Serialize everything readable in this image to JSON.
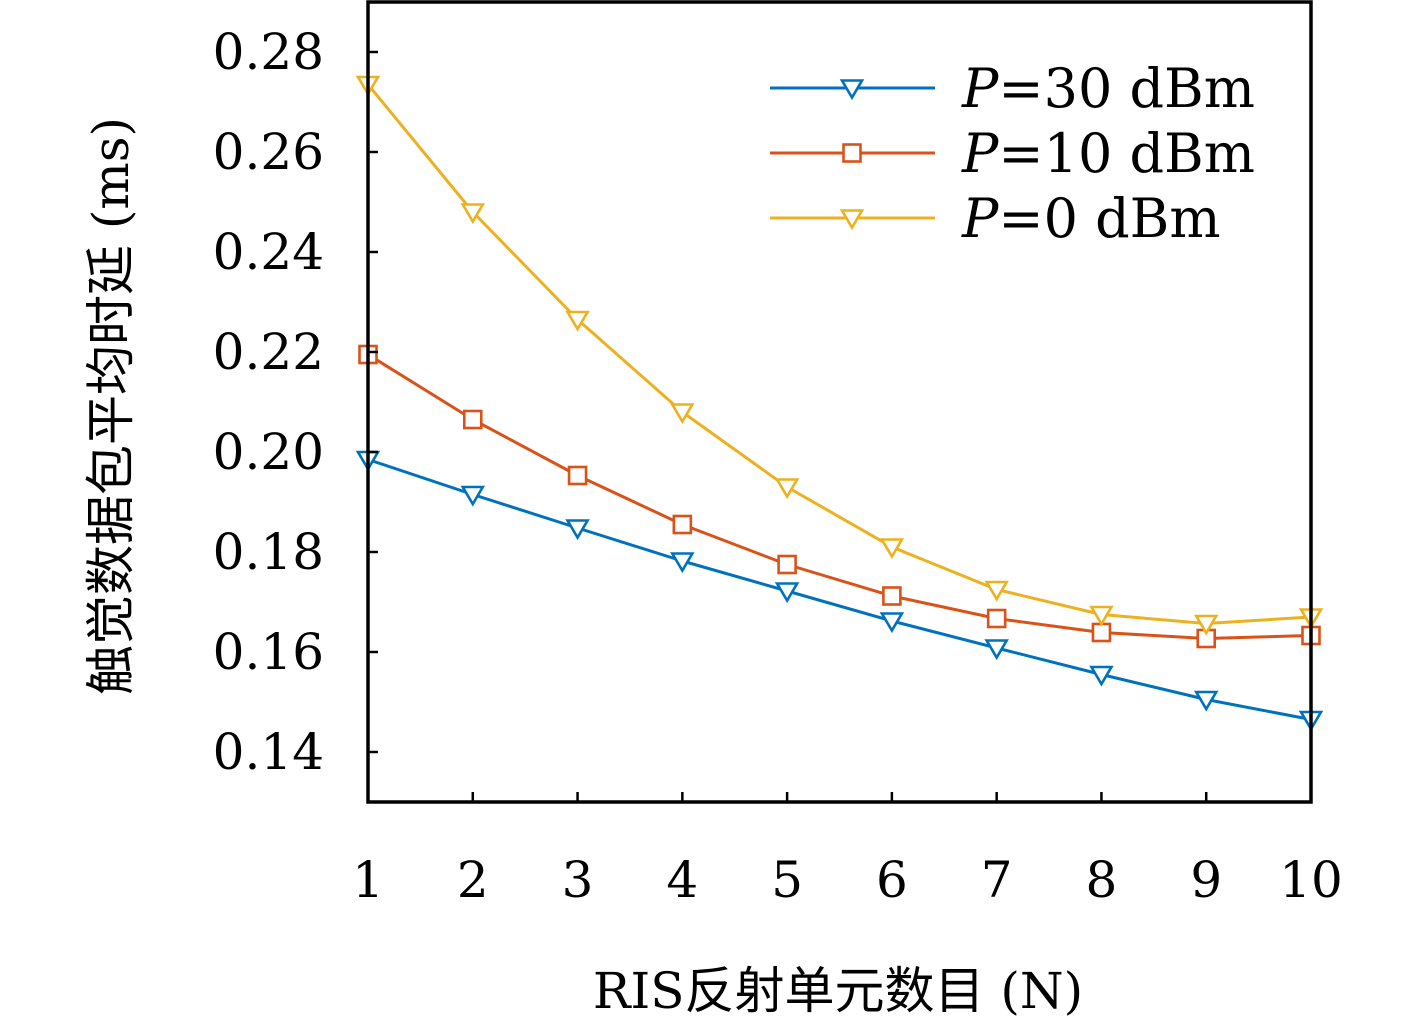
{
  "chart_data": {
    "type": "line",
    "xlabel": "RIS反射单元数目 (N)",
    "ylabel": "触觉数据包平均时延 (ms)",
    "x": [
      1,
      2,
      3,
      4,
      5,
      6,
      7,
      8,
      9,
      10
    ],
    "xlim": [
      1,
      10
    ],
    "ylim": [
      0.13,
      0.29
    ],
    "xticks": [
      "1",
      "2",
      "3",
      "4",
      "5",
      "6",
      "7",
      "8",
      "9",
      "10"
    ],
    "yticks": [
      "0.14",
      "0.16",
      "0.18",
      "0.20",
      "0.22",
      "0.24",
      "0.26",
      "0.28"
    ],
    "grid": false,
    "legend_position": "top-right",
    "series": [
      {
        "name": "P=30 dBm",
        "name_var": "P",
        "name_rest": "=30 dBm",
        "color": "#0072BD",
        "marker": "triangle-down",
        "values": [
          0.1985,
          0.1915,
          0.1848,
          0.1782,
          0.1722,
          0.1662,
          0.1608,
          0.1555,
          0.1505,
          0.1465
        ]
      },
      {
        "name": "P=10 dBm",
        "name_var": "P",
        "name_rest": "=10 dBm",
        "color": "#D95319",
        "marker": "square",
        "values": [
          0.2195,
          0.2065,
          0.1953,
          0.1855,
          0.1775,
          0.1712,
          0.1667,
          0.1639,
          0.1627,
          0.1633
        ]
      },
      {
        "name": "P=0 dBm",
        "name_var": "P",
        "name_rest": "=0 dBm",
        "color": "#EDB120",
        "marker": "triangle-down",
        "values": [
          0.2735,
          0.248,
          0.2265,
          0.208,
          0.193,
          0.181,
          0.1725,
          0.1675,
          0.1657,
          0.167
        ]
      }
    ]
  }
}
